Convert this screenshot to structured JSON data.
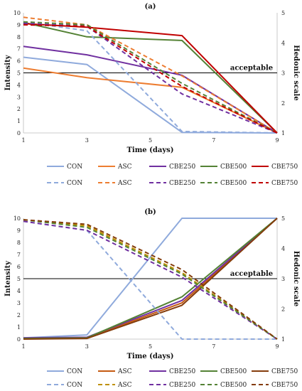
{
  "chart_data": [
    {
      "type": "line",
      "title": "(a)",
      "xlabel": "Time (days)",
      "ylabel": "Intensity",
      "y2label": "Hedonic scale",
      "xlim": [
        1,
        9
      ],
      "ylim": [
        0,
        10
      ],
      "y2lim": [
        1,
        5
      ],
      "x_ticks": [
        1,
        3,
        5,
        7,
        9
      ],
      "y_ticks": [
        0,
        1,
        2,
        3,
        4,
        5,
        6,
        7,
        8,
        9,
        10
      ],
      "y2_ticks": [
        1,
        2,
        3,
        4,
        5
      ],
      "grid": false,
      "legend_position": "bottom",
      "annotation": {
        "text": "acceptable",
        "y": 5
      },
      "series": [
        {
          "name": "CON",
          "style": "solid",
          "color": "#8faadc",
          "x": [
            1,
            3,
            6,
            9
          ],
          "y": [
            6.3,
            5.7,
            0.05,
            0.0
          ]
        },
        {
          "name": "ASC",
          "style": "solid",
          "color": "#ed7d31",
          "x": [
            1,
            3,
            6,
            9
          ],
          "y": [
            5.4,
            4.6,
            3.8,
            0.0
          ]
        },
        {
          "name": "CBE250",
          "style": "solid",
          "color": "#7030a0",
          "x": [
            1,
            3,
            6,
            9
          ],
          "y": [
            7.2,
            6.5,
            4.8,
            0.0
          ]
        },
        {
          "name": "CBE500",
          "style": "solid",
          "color": "#548235",
          "x": [
            1,
            3,
            6,
            9
          ],
          "y": [
            9.2,
            8.0,
            7.7,
            0.0
          ]
        },
        {
          "name": "CBE750",
          "style": "solid",
          "color": "#c00000",
          "x": [
            1,
            3,
            6,
            9
          ],
          "y": [
            9.1,
            8.8,
            8.1,
            0.0
          ]
        },
        {
          "name": "CON",
          "style": "dashed",
          "color": "#8faadc",
          "x": [
            1,
            3,
            6,
            9
          ],
          "y": [
            4.7,
            4.4,
            1.05,
            1.0
          ]
        },
        {
          "name": "ASC",
          "style": "dashed",
          "color": "#ed7d31",
          "x": [
            1,
            3,
            6,
            9
          ],
          "y": [
            4.85,
            4.6,
            2.9,
            1.0
          ]
        },
        {
          "name": "CBE250",
          "style": "dashed",
          "color": "#7030a0",
          "x": [
            1,
            3,
            6,
            9
          ],
          "y": [
            4.65,
            4.55,
            2.3,
            1.0
          ]
        },
        {
          "name": "CBE500",
          "style": "dashed",
          "color": "#548235",
          "x": [
            1,
            3,
            6,
            9
          ],
          "y": [
            4.7,
            4.6,
            2.65,
            1.0
          ]
        },
        {
          "name": "CBE750",
          "style": "dashed",
          "color": "#c00000",
          "x": [
            1,
            3,
            6,
            9
          ],
          "y": [
            4.6,
            4.55,
            2.55,
            1.0
          ]
        }
      ]
    },
    {
      "type": "line",
      "title": "(b)",
      "xlabel": "Time (days)",
      "ylabel": "Intensity",
      "y2label": "Hedonic scale",
      "xlim": [
        1,
        9
      ],
      "ylim": [
        0,
        10
      ],
      "y2lim": [
        1,
        5
      ],
      "x_ticks": [
        1,
        3,
        5,
        7,
        9
      ],
      "y_ticks": [
        0,
        1,
        2,
        3,
        4,
        5,
        6,
        7,
        8,
        9,
        10
      ],
      "y2_ticks": [
        1,
        2,
        3,
        4,
        5
      ],
      "grid": false,
      "legend_position": "bottom",
      "annotation": {
        "text": "acceptable",
        "y": 5
      },
      "series": [
        {
          "name": "CON",
          "style": "solid",
          "color": "#8faadc",
          "x": [
            1,
            3,
            6,
            9
          ],
          "y": [
            0.1,
            0.35,
            10.0,
            10.0
          ]
        },
        {
          "name": "ASC",
          "style": "solid",
          "color": "#c55a11",
          "x": [
            1,
            3,
            6,
            9
          ],
          "y": [
            0.05,
            0.1,
            3.0,
            10.0
          ]
        },
        {
          "name": "CBE250",
          "style": "solid",
          "color": "#7030a0",
          "x": [
            1,
            3,
            6,
            9
          ],
          "y": [
            0.1,
            0.15,
            3.2,
            10.0
          ]
        },
        {
          "name": "CBE500",
          "style": "solid",
          "color": "#548235",
          "x": [
            1,
            3,
            6,
            9
          ],
          "y": [
            0.05,
            0.1,
            3.5,
            10.0
          ]
        },
        {
          "name": "CBE750",
          "style": "solid",
          "color": "#843c0c",
          "x": [
            1,
            3,
            6,
            9
          ],
          "y": [
            0.0,
            0.05,
            2.8,
            10.0
          ]
        },
        {
          "name": "CON",
          "style": "dashed",
          "color": "#8faadc",
          "x": [
            1,
            3,
            6,
            9
          ],
          "y": [
            4.9,
            4.6,
            1.0,
            1.0
          ]
        },
        {
          "name": "ASC",
          "style": "dashed",
          "color": "#bf9000",
          "x": [
            1,
            3,
            6,
            9
          ],
          "y": [
            4.95,
            4.75,
            3.2,
            1.0
          ]
        },
        {
          "name": "CBE250",
          "style": "dashed",
          "color": "#7030a0",
          "x": [
            1,
            3,
            6,
            9
          ],
          "y": [
            4.9,
            4.6,
            3.05,
            1.0
          ]
        },
        {
          "name": "CBE500",
          "style": "dashed",
          "color": "#548235",
          "x": [
            1,
            3,
            6,
            9
          ],
          "y": [
            4.95,
            4.7,
            3.15,
            1.0
          ]
        },
        {
          "name": "CBE750",
          "style": "dashed",
          "color": "#843c0c",
          "x": [
            1,
            3,
            6,
            9
          ],
          "y": [
            4.95,
            4.8,
            3.3,
            1.0
          ]
        }
      ]
    }
  ]
}
